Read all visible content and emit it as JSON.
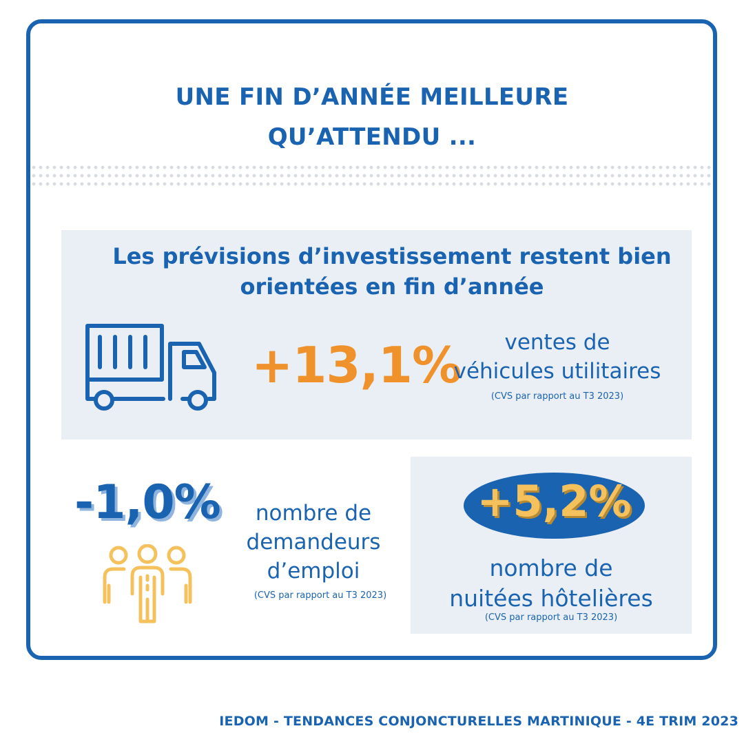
{
  "title": {
    "line1": "UNE FIN D’ANNÉE MEILLEURE",
    "line2": "QU’ATTENDU ..."
  },
  "investment": {
    "heading_line1": "Les prévisions d’investissement restent bien",
    "heading_line2": "orientées en fin d’année",
    "icon": "truck-icon",
    "value": "+13,1%",
    "label_line1": "ventes de",
    "label_line2": "véhicules utilitaires",
    "note": "(CVS par rapport au T3 2023)"
  },
  "employment": {
    "icon": "people-group-icon",
    "value": "-1,0%",
    "label_line1": "nombre de",
    "label_line2": "demandeurs",
    "label_line3": "d’emploi",
    "note": "(CVS par rapport au T3 2023)"
  },
  "hotel": {
    "value": "+5,2%",
    "label_line1": "nombre de",
    "label_line2": "nuitées hôtelières",
    "note": "(CVS par rapport au T3 2023)"
  },
  "footer": "IEDOM - TENDANCES CONJONCTURELLES MARTINIQUE - 4E TRIM 2023",
  "colors": {
    "primary_blue": "#1a63b0",
    "orange": "#f0922b",
    "light_gold": "#f5c15d",
    "panel_bg": "#e9eff5"
  }
}
